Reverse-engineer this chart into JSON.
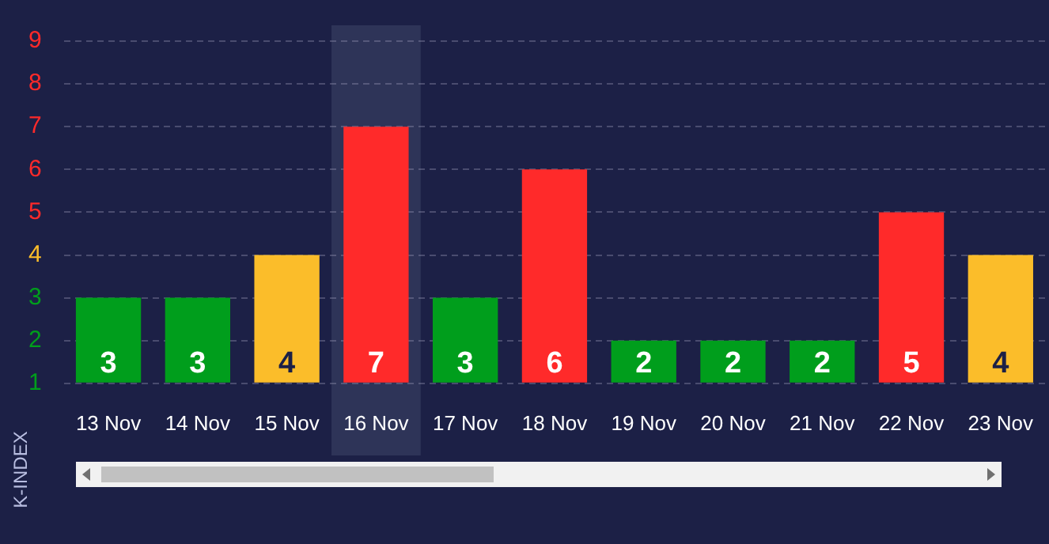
{
  "chart_data": {
    "type": "bar",
    "ylabel": "K-INDEX",
    "categories": [
      "13 Nov",
      "14 Nov",
      "15 Nov",
      "16 Nov",
      "17 Nov",
      "18 Nov",
      "19 Nov",
      "20 Nov",
      "21 Nov",
      "22 Nov",
      "23 Nov"
    ],
    "values": [
      3,
      3,
      4,
      7,
      3,
      6,
      2,
      2,
      2,
      5,
      4
    ],
    "colors": [
      "#009e1c",
      "#009e1c",
      "#fbbd2a",
      "#ff2a2a",
      "#009e1c",
      "#ff2a2a",
      "#009e1c",
      "#009e1c",
      "#009e1c",
      "#ff2a2a",
      "#fbbd2a"
    ],
    "ylim": [
      1,
      9
    ],
    "yticks": [
      1,
      2,
      3,
      4,
      5,
      6,
      7,
      8,
      9
    ],
    "grid": "y",
    "legend": false,
    "data_labels": true,
    "bands": [
      {
        "axis": "x",
        "from": "16 Nov",
        "to": "16 Nov",
        "color": "#2e3458"
      }
    ]
  }
}
